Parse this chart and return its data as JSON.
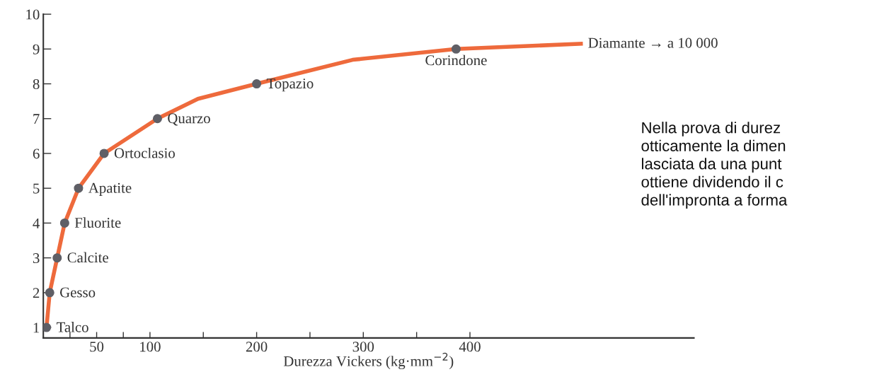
{
  "chart_data": {
    "type": "scatter",
    "xlabel": "Durezza Vickers (kg·mm$^{−2}$)",
    "xlim": [
      0,
      610
    ],
    "ylim": [
      0.7,
      10
    ],
    "xticks": [
      {
        "value": 25,
        "label": null
      },
      50,
      {
        "value": 75,
        "label": null
      },
      100,
      {
        "value": 150,
        "label": null
      },
      200,
      {
        "value": 250,
        "label": null
      },
      300,
      {
        "value": 350,
        "label": null
      },
      400
    ],
    "yticks": [
      1,
      2,
      3,
      4,
      5,
      6,
      7,
      8,
      9,
      10
    ],
    "grid": false,
    "series": [
      {
        "type": "line",
        "color": "#ee6a3c",
        "x": [
          3,
          6,
          13,
          20,
          33,
          57,
          107,
          145,
          200,
          290,
          387,
          504
        ],
        "values": [
          1,
          2,
          3,
          4,
          5,
          6,
          7,
          7.57,
          8,
          8.69,
          9,
          9.15
        ]
      },
      {
        "marker": "circle",
        "color": "#5f5f66",
        "x": [
          3,
          6,
          13,
          20,
          33,
          57,
          107,
          200,
          387
        ],
        "values": [
          1,
          2,
          3,
          4,
          5,
          6,
          7,
          8,
          9
        ]
      }
    ],
    "annotations": [
      {
        "text": "Talco",
        "x": 3,
        "y": 1
      },
      {
        "text": "Gesso",
        "x": 6,
        "y": 2
      },
      {
        "text": "Calcite",
        "x": 13,
        "y": 3
      },
      {
        "text": "Fluorite",
        "x": 20,
        "y": 4
      },
      {
        "text": "Apatite",
        "x": 33,
        "y": 5
      },
      {
        "text": "Ortoclasio",
        "x": 57,
        "y": 6
      },
      {
        "text": "Quarzo",
        "x": 107,
        "y": 7
      },
      {
        "text": "Topazio",
        "x": 200,
        "y": 8
      },
      {
        "text": "Corindone",
        "x": 387,
        "y": 9
      },
      "Diamante → a 10 000",
      "Nella prova di durez\notticamente la dimen\nlasciata da una punt\nottiene dividendo il c\ndell'impronta a forma"
    ]
  }
}
